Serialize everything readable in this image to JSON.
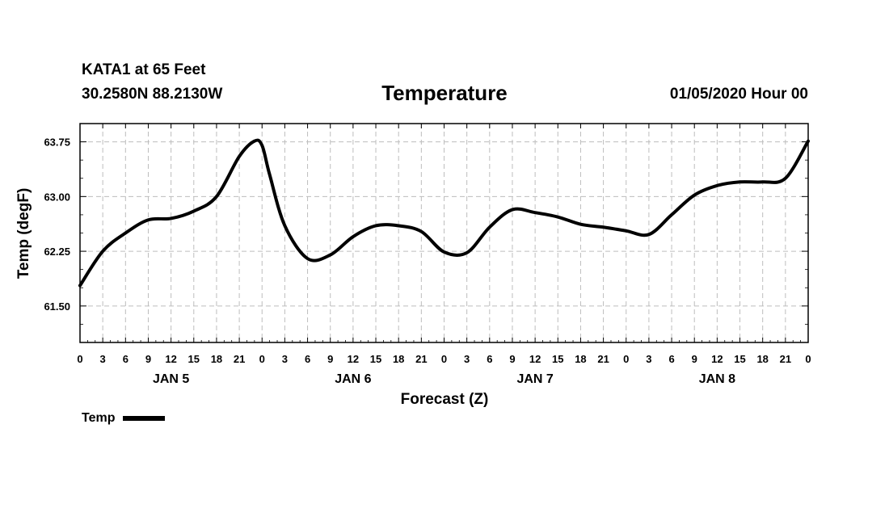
{
  "header": {
    "station": "KATA1 at 65 Feet",
    "coords": "30.2580N 88.2130W",
    "title": "Temperature",
    "datetime": "01/05/2020 Hour 00"
  },
  "chart_data": {
    "type": "line",
    "title": "Temperature",
    "xlabel": "Forecast (Z)",
    "ylabel": "Temp (degF)",
    "ylim": [
      61.0,
      64.0
    ],
    "yticks": [
      61.5,
      62.25,
      63.0,
      63.75
    ],
    "ytick_labels": [
      "61.50",
      "62.25",
      "63.00",
      "63.75"
    ],
    "xlim": [
      0,
      96
    ],
    "xtick_hours": [
      0,
      3,
      6,
      9,
      12,
      15,
      18,
      21,
      24,
      27,
      30,
      33,
      36,
      39,
      42,
      45,
      48,
      51,
      54,
      57,
      60,
      63,
      66,
      69,
      72,
      75,
      78,
      81,
      84,
      87,
      90,
      93,
      96
    ],
    "xtick_labels": [
      "0",
      "3",
      "6",
      "9",
      "12",
      "15",
      "18",
      "21",
      "0",
      "3",
      "6",
      "9",
      "12",
      "15",
      "18",
      "21",
      "0",
      "3",
      "6",
      "9",
      "12",
      "15",
      "18",
      "21",
      "0",
      "3",
      "6",
      "9",
      "12",
      "15",
      "18",
      "21",
      "0"
    ],
    "day_labels": [
      {
        "label": "JAN 5",
        "hour": 12
      },
      {
        "label": "JAN 6",
        "hour": 36
      },
      {
        "label": "JAN 7",
        "hour": 60
      },
      {
        "label": "JAN 8",
        "hour": 84
      }
    ],
    "grid": true,
    "legend": "bottom-left",
    "series": [
      {
        "name": "Temp",
        "color": "#000000",
        "x": [
          0,
          3,
          6,
          9,
          12,
          15,
          18,
          21,
          23,
          24,
          25,
          27,
          30,
          33,
          36,
          39,
          42,
          45,
          48,
          51,
          54,
          57,
          60,
          63,
          66,
          69,
          72,
          75,
          78,
          81,
          84,
          87,
          90,
          93,
          96
        ],
        "y": [
          61.78,
          62.25,
          62.5,
          62.68,
          62.7,
          62.8,
          63.0,
          63.55,
          63.76,
          63.7,
          63.3,
          62.6,
          62.15,
          62.2,
          62.45,
          62.6,
          62.6,
          62.52,
          62.24,
          62.23,
          62.58,
          62.82,
          62.78,
          62.72,
          62.62,
          62.58,
          62.53,
          62.48,
          62.75,
          63.02,
          63.15,
          63.2,
          63.2,
          63.25,
          63.76
        ]
      }
    ]
  },
  "legend": {
    "label": "Temp"
  }
}
